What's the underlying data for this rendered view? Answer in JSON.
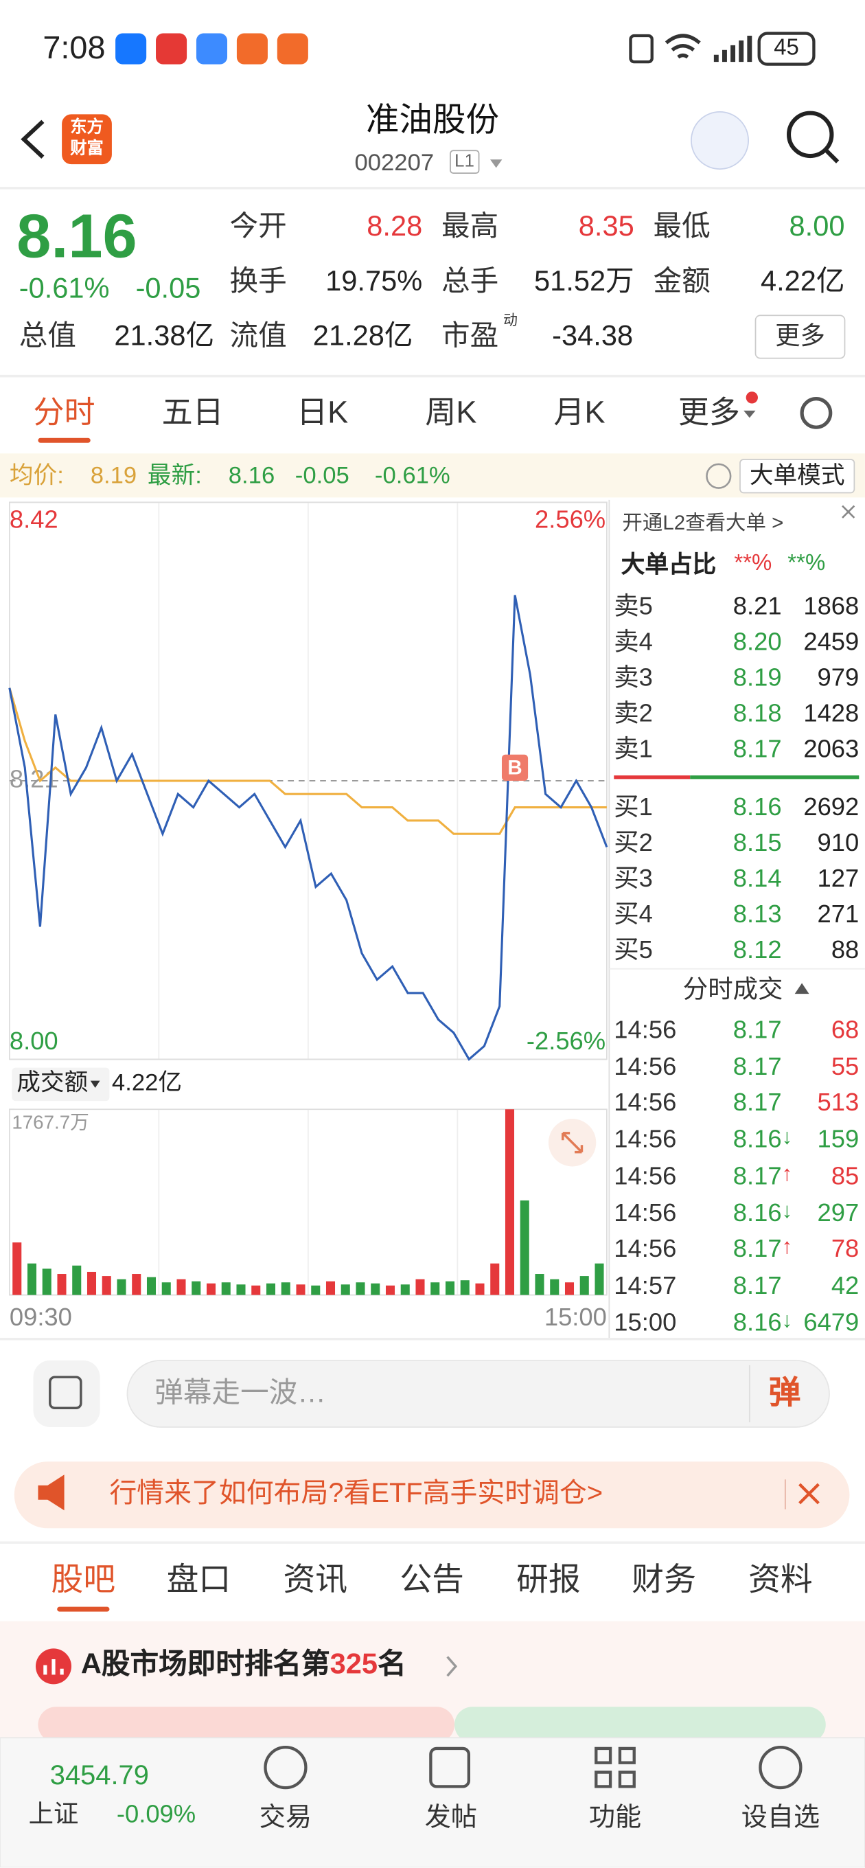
{
  "status_bar": {
    "time": "7:08",
    "battery": "45"
  },
  "header": {
    "title": "准油股份",
    "code": "002207",
    "level": "L1",
    "logo": [
      "东方",
      "财富"
    ]
  },
  "quote": {
    "price": "8.16",
    "change_pct": "-0.61%",
    "change": "-0.05",
    "more": "更多",
    "fields": [
      {
        "label": "今开",
        "value": "8.28",
        "color": "#e5383b"
      },
      {
        "label": "最高",
        "value": "8.35",
        "color": "#e5383b"
      },
      {
        "label": "最低",
        "value": "8.00",
        "color": "#2f9e44"
      },
      {
        "label": "换手",
        "value": "19.75%",
        "color": "#222"
      },
      {
        "label": "总手",
        "value": "51.52万",
        "color": "#222"
      },
      {
        "label": "金额",
        "value": "4.22亿",
        "color": "#222"
      },
      {
        "label": "总值",
        "value": "21.38亿",
        "color": "#222"
      },
      {
        "label": "流值",
        "value": "21.28亿",
        "color": "#222"
      },
      {
        "label": "市盈",
        "sup": "动",
        "value": "-34.38",
        "color": "#222"
      }
    ]
  },
  "tabs": {
    "items": [
      "分时",
      "五日",
      "日K",
      "周K",
      "月K",
      "更多"
    ],
    "active": 0
  },
  "info_bar": {
    "avg_label": "均价:",
    "avg": "8.19",
    "latest_label": "最新:",
    "latest": "8.16",
    "change": "-0.05",
    "change_pct": "-0.61%",
    "mode": "大单模式"
  },
  "chart_data": [
    {
      "type": "line",
      "annotation": "B",
      "categories": [
        "09:30",
        null,
        null,
        null,
        null,
        null,
        null,
        null,
        null,
        null,
        null,
        null,
        null,
        null,
        null,
        null,
        null,
        null,
        null,
        null,
        null,
        null,
        null,
        null,
        null,
        null,
        null,
        null,
        null,
        null,
        null,
        null,
        null,
        null,
        null,
        null,
        null,
        null,
        null,
        "15:00"
      ],
      "series": [
        {
          "color": "#2f5fb5",
          "values": [
            8.28,
            8.22,
            8.1,
            8.26,
            8.2,
            8.22,
            8.25,
            8.21,
            8.23,
            8.2,
            8.17,
            8.2,
            8.19,
            8.21,
            8.2,
            8.19,
            8.2,
            8.18,
            8.16,
            8.18,
            8.13,
            8.14,
            8.12,
            8.08,
            8.06,
            8.07,
            8.05,
            8.05,
            8.03,
            8.02,
            8.0,
            8.01,
            8.04,
            8.35,
            8.29,
            8.2,
            8.19,
            8.21,
            8.19,
            8.16
          ]
        },
        {
          "color": "#f0b040",
          "values": [
            8.28,
            8.24,
            8.21,
            8.22,
            8.21,
            8.21,
            8.21,
            8.21,
            8.21,
            8.21,
            8.21,
            8.21,
            8.21,
            8.21,
            8.21,
            8.21,
            8.21,
            8.21,
            8.2,
            8.2,
            8.2,
            8.2,
            8.2,
            8.19,
            8.19,
            8.19,
            8.18,
            8.18,
            8.18,
            8.17,
            8.17,
            8.17,
            8.17,
            8.19,
            8.19,
            8.19,
            8.19,
            8.19,
            8.19,
            8.19
          ]
        }
      ],
      "ylim": [
        8,
        8.42
      ],
      "yticks": [
        8.42,
        8.21,
        {
          "value": 8,
          "label": "8.00"
        }
      ],
      "y2lim": [
        -2.56,
        2.56
      ],
      "y2ticks": [
        {
          "value": 2.56,
          "label": "2.56%"
        },
        {
          "value": -2.56,
          "label": "-2.56%"
        }
      ]
    },
    {
      "type": "bar",
      "title": "成交额",
      "total": "4.22亿",
      "values": [
        500,
        300,
        250,
        200,
        280,
        220,
        180,
        150,
        200,
        170,
        120,
        150,
        130,
        110,
        120,
        100,
        90,
        110,
        120,
        100,
        90,
        130,
        100,
        120,
        110,
        90,
        100,
        150,
        120,
        130,
        140,
        110,
        300,
        1767.7,
        900,
        200,
        150,
        120,
        180,
        300
      ],
      "colors": [
        "#e5383b",
        "#2f9e44",
        "#2f9e44",
        "#e5383b",
        "#2f9e44",
        "#e5383b",
        "#e5383b",
        "#2f9e44",
        "#e5383b",
        "#2f9e44",
        "#2f9e44",
        "#e5383b",
        "#2f9e44",
        "#e5383b",
        "#2f9e44",
        "#2f9e44",
        "#e5383b",
        "#2f9e44",
        "#2f9e44",
        "#e5383b",
        "#2f9e44",
        "#e5383b",
        "#2f9e44",
        "#2f9e44",
        "#2f9e44",
        "#e5383b",
        "#2f9e44",
        "#e5383b",
        "#2f9e44",
        "#2f9e44",
        "#2f9e44",
        "#e5383b",
        "#e5383b",
        "#e5383b",
        "#2f9e44",
        "#2f9e44",
        "#2f9e44",
        "#e5383b",
        "#2f9e44",
        "#2f9e44"
      ],
      "ylim": [
        0,
        1767.7
      ],
      "yticks": [
        {
          "value": 1767.7,
          "label": "1767.7万"
        }
      ]
    }
  ],
  "order_book": {
    "link": "开通L2查看大单 >",
    "title": "大单占比",
    "ratio": [
      "**%",
      "**%"
    ],
    "asks": [
      {
        "label": "卖5",
        "price": "8.21",
        "volume": "1868",
        "color": "#222"
      },
      {
        "label": "卖4",
        "price": "8.20",
        "volume": "2459",
        "color": "#2f9e44"
      },
      {
        "label": "卖3",
        "price": "8.19",
        "volume": "979",
        "color": "#2f9e44"
      },
      {
        "label": "卖2",
        "price": "8.18",
        "volume": "1428",
        "color": "#2f9e44"
      },
      {
        "label": "卖1",
        "price": "8.17",
        "volume": "2063",
        "color": "#2f9e44"
      }
    ],
    "bids": [
      {
        "label": "买1",
        "price": "8.16",
        "volume": "2692",
        "color": "#2f9e44"
      },
      {
        "label": "买2",
        "price": "8.15",
        "volume": "910",
        "color": "#2f9e44"
      },
      {
        "label": "买3",
        "price": "8.14",
        "volume": "127",
        "color": "#2f9e44"
      },
      {
        "label": "买4",
        "price": "8.13",
        "volume": "271",
        "color": "#2f9e44"
      },
      {
        "label": "买5",
        "price": "8.12",
        "volume": "88",
        "color": "#2f9e44"
      }
    ]
  },
  "trades": {
    "title": "分时成交",
    "rows": [
      {
        "time": "14:56",
        "price": "8.17",
        "volume": "68",
        "volume_color": "#e5383b"
      },
      {
        "time": "14:56",
        "price": "8.17",
        "volume": "55",
        "volume_color": "#e5383b"
      },
      {
        "time": "14:56",
        "price": "8.17",
        "volume": "513",
        "volume_color": "#e5383b"
      },
      {
        "time": "14:56",
        "price": "8.16",
        "arrow": "↓",
        "volume": "159",
        "volume_color": "#2f9e44"
      },
      {
        "time": "14:56",
        "price": "8.17",
        "arrow": "↑",
        "volume": "85",
        "volume_color": "#e5383b"
      },
      {
        "time": "14:56",
        "price": "8.16",
        "arrow": "↓",
        "volume": "297",
        "volume_color": "#2f9e44"
      },
      {
        "time": "14:56",
        "price": "8.17",
        "arrow": "↑",
        "volume": "78",
        "volume_color": "#e5383b"
      },
      {
        "time": "14:57",
        "price": "8.17",
        "volume": "42",
        "volume_color": "#2f9e44"
      },
      {
        "time": "15:00",
        "price": "8.16",
        "arrow": "↓",
        "volume": "6479",
        "volume_color": "#2f9e44"
      }
    ]
  },
  "comment": {
    "placeholder": "弹幕走一波…",
    "button": "弹"
  },
  "banner": {
    "text": "行情来了如何布局?看ETF高手实时调仓>"
  },
  "sub_tabs": {
    "items": [
      "股吧",
      "盘口",
      "资讯",
      "公告",
      "研报",
      "财务",
      "资料"
    ],
    "active": 0
  },
  "ranking": {
    "prefix": "A股市场即时排名第",
    "rank": "325",
    "suffix": "名"
  },
  "bottom_nav": {
    "index": {
      "value": "3454.79",
      "name": "上证",
      "change": "-0.09%"
    },
    "items": [
      "交易",
      "发帖",
      "功能",
      "设自选"
    ]
  }
}
